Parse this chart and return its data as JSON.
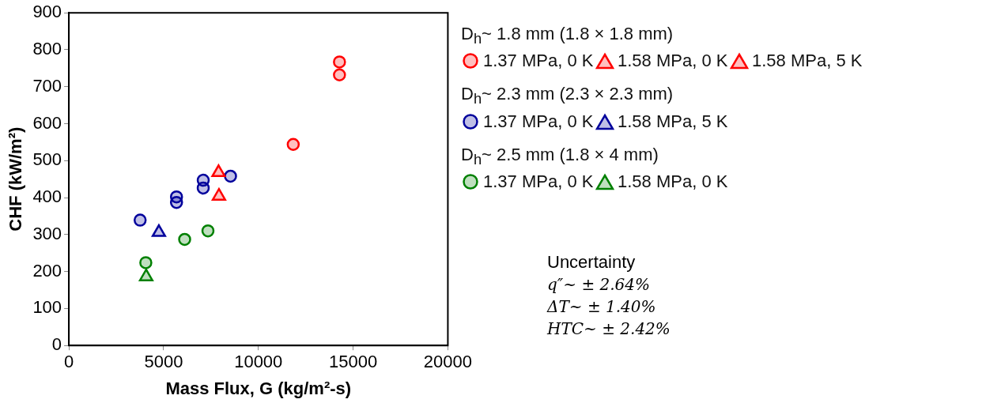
{
  "chart_data": {
    "type": "scatter",
    "xlabel": "Mass Flux, G (kg/m²-s)",
    "ylabel": "CHF (kW/m²)",
    "xlim": [
      0,
      20000
    ],
    "xticks": [
      0,
      5000,
      10000,
      15000,
      20000
    ],
    "ylim": [
      0,
      900
    ],
    "yticks": [
      0,
      100,
      200,
      300,
      400,
      500,
      600,
      700,
      800,
      900
    ],
    "grid": false,
    "legend": "right",
    "series": [
      {
        "name": "1.37 MPa, 0 K",
        "color": "#ff0000",
        "marker": "circle",
        "x": [
          14280,
          14280,
          11840
        ],
        "values": [
          767,
          732,
          544
        ]
      },
      {
        "name": "1.58 MPa, 0 K",
        "color": "#ff0000",
        "marker": "triangle",
        "x": [
          7920
        ],
        "values": [
          404
        ]
      },
      {
        "name": "1.58 MPa, 5 K",
        "color": "#ff0000",
        "marker": "triangle",
        "x": [
          7900
        ],
        "values": [
          468
        ]
      },
      {
        "name": "1.37 MPa, 0 K",
        "color": "#00009c",
        "marker": "circle",
        "x": [
          3760,
          5680,
          5680,
          7090,
          7090,
          8530
        ],
        "values": [
          339,
          387,
          402,
          447,
          426,
          458
        ]
      },
      {
        "name": "1.58 MPa, 5 K",
        "color": "#00009c",
        "marker": "triangle",
        "x": [
          4750
        ],
        "values": [
          306
        ]
      },
      {
        "name": "1.37 MPa, 0 K",
        "color": "#008000",
        "marker": "circle",
        "x": [
          4060,
          6110,
          7340
        ],
        "values": [
          224,
          287,
          310
        ]
      },
      {
        "name": "1.58 MPa, 0 K",
        "color": "#008000",
        "marker": "triangle",
        "x": [
          4080
        ],
        "values": [
          186
        ]
      }
    ],
    "annotations": [
      "D$_{h}$~ 1.8 mm (1.8 × 1.8 mm)",
      "D$_{h}$~ 2.3 mm (2.3 × 2.3 mm)",
      "D$_{h}$~ 2.5 mm (1.8 × 4 mm)",
      "Uncertainty",
      "q″~ ± 2.64%",
      "ΔT~ ± 1.40%",
      "HTC~ ± 2.42%"
    ]
  }
}
